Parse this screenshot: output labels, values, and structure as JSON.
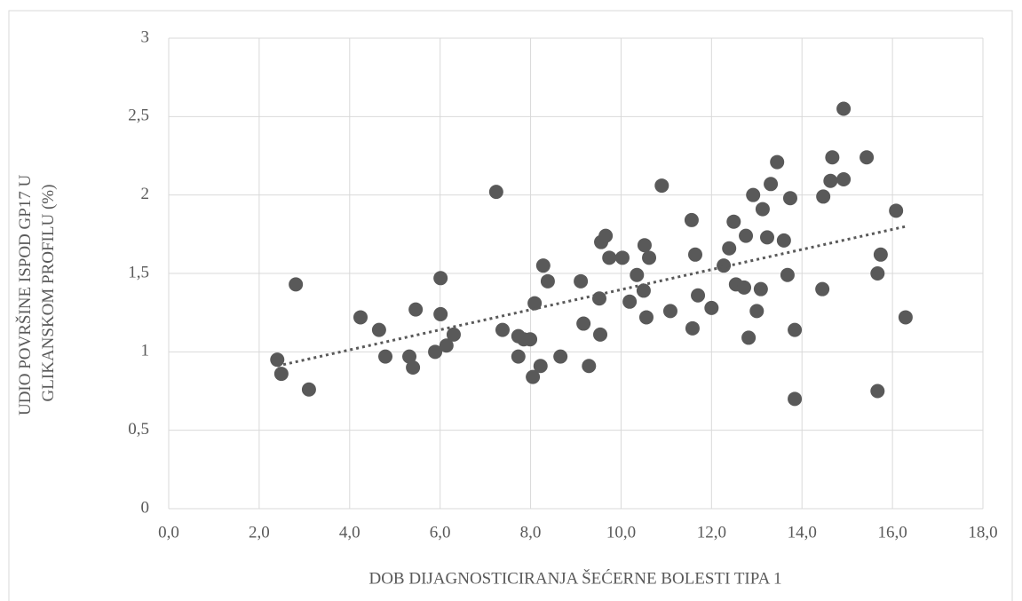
{
  "chart_data": {
    "type": "scatter",
    "x_label": "DOB DIJAGNOSTICIRANJA ŠEĆERNE BOLESTI TIPA 1",
    "y_label": [
      "UDIO POVRŠINE ISPOD GP17 U",
      "GLIKANSKOM PROFILU (%)"
    ],
    "color": "#595959",
    "grid": true,
    "xlim": [
      0,
      18
    ],
    "xticks": [
      {
        "value": 0,
        "label": "0,0"
      },
      {
        "value": 2,
        "label": "2,0"
      },
      {
        "value": 4,
        "label": "4,0"
      },
      {
        "value": 6,
        "label": "6,0"
      },
      {
        "value": 8,
        "label": "8,0"
      },
      {
        "value": 10,
        "label": "10,0"
      },
      {
        "value": 12,
        "label": "12,0"
      },
      {
        "value": 14,
        "label": "14,0"
      },
      {
        "value": 16,
        "label": "16,0"
      },
      {
        "value": 18,
        "label": "18,0"
      }
    ],
    "ylim": [
      0,
      3
    ],
    "yticks": [
      0,
      {
        "value": 0.5,
        "label": "0,5"
      },
      1,
      {
        "value": 1.5,
        "label": "1,5"
      },
      2,
      {
        "value": 2.5,
        "label": "2,5"
      },
      3
    ],
    "x": [
      2.4,
      2.49,
      2.81,
      3.1,
      4.24,
      4.65,
      4.79,
      5.32,
      5.4,
      5.46,
      5.89,
      6.01,
      6.01,
      6.14,
      6.3,
      7.24,
      7.38,
      7.73,
      7.73,
      7.85,
      7.99,
      8.05,
      8.09,
      8.22,
      8.28,
      8.38,
      8.66,
      9.11,
      9.17,
      9.29,
      9.52,
      9.54,
      9.56,
      9.66,
      9.74,
      10.03,
      10.19,
      10.35,
      10.5,
      10.52,
      10.56,
      10.62,
      10.9,
      11.09,
      11.56,
      11.58,
      11.64,
      11.7,
      12.0,
      12.27,
      12.39,
      12.49,
      12.54,
      12.72,
      12.76,
      12.82,
      12.92,
      13.0,
      13.09,
      13.13,
      13.23,
      13.31,
      13.45,
      13.6,
      13.68,
      13.74,
      13.84,
      13.84,
      14.45,
      14.47,
      14.63,
      14.67,
      14.92,
      14.92,
      15.43,
      15.67,
      15.67,
      15.74,
      16.08,
      16.29
    ],
    "values": [
      0.95,
      0.86,
      1.43,
      0.76,
      1.22,
      1.14,
      0.97,
      0.97,
      0.9,
      1.27,
      1.0,
      1.24,
      1.47,
      1.04,
      1.11,
      2.02,
      1.14,
      0.97,
      1.1,
      1.08,
      1.08,
      0.84,
      1.31,
      0.91,
      1.55,
      1.45,
      0.97,
      1.45,
      1.18,
      0.91,
      1.34,
      1.11,
      1.7,
      1.74,
      1.6,
      1.6,
      1.32,
      1.49,
      1.39,
      1.68,
      1.22,
      1.6,
      2.06,
      1.26,
      1.84,
      1.15,
      1.62,
      1.36,
      1.28,
      1.55,
      1.66,
      1.83,
      1.43,
      1.41,
      1.74,
      1.09,
      2.0,
      1.26,
      1.4,
      1.91,
      1.73,
      2.07,
      2.21,
      1.71,
      1.49,
      1.98,
      0.7,
      1.14,
      1.4,
      1.99,
      2.09,
      2.24,
      2.1,
      2.55,
      2.24,
      0.75,
      1.5,
      1.62,
      1.9,
      1.22
    ],
    "trendline": {
      "x": [
        2.4,
        16.3
      ],
      "values": [
        0.91,
        1.8
      ]
    }
  }
}
